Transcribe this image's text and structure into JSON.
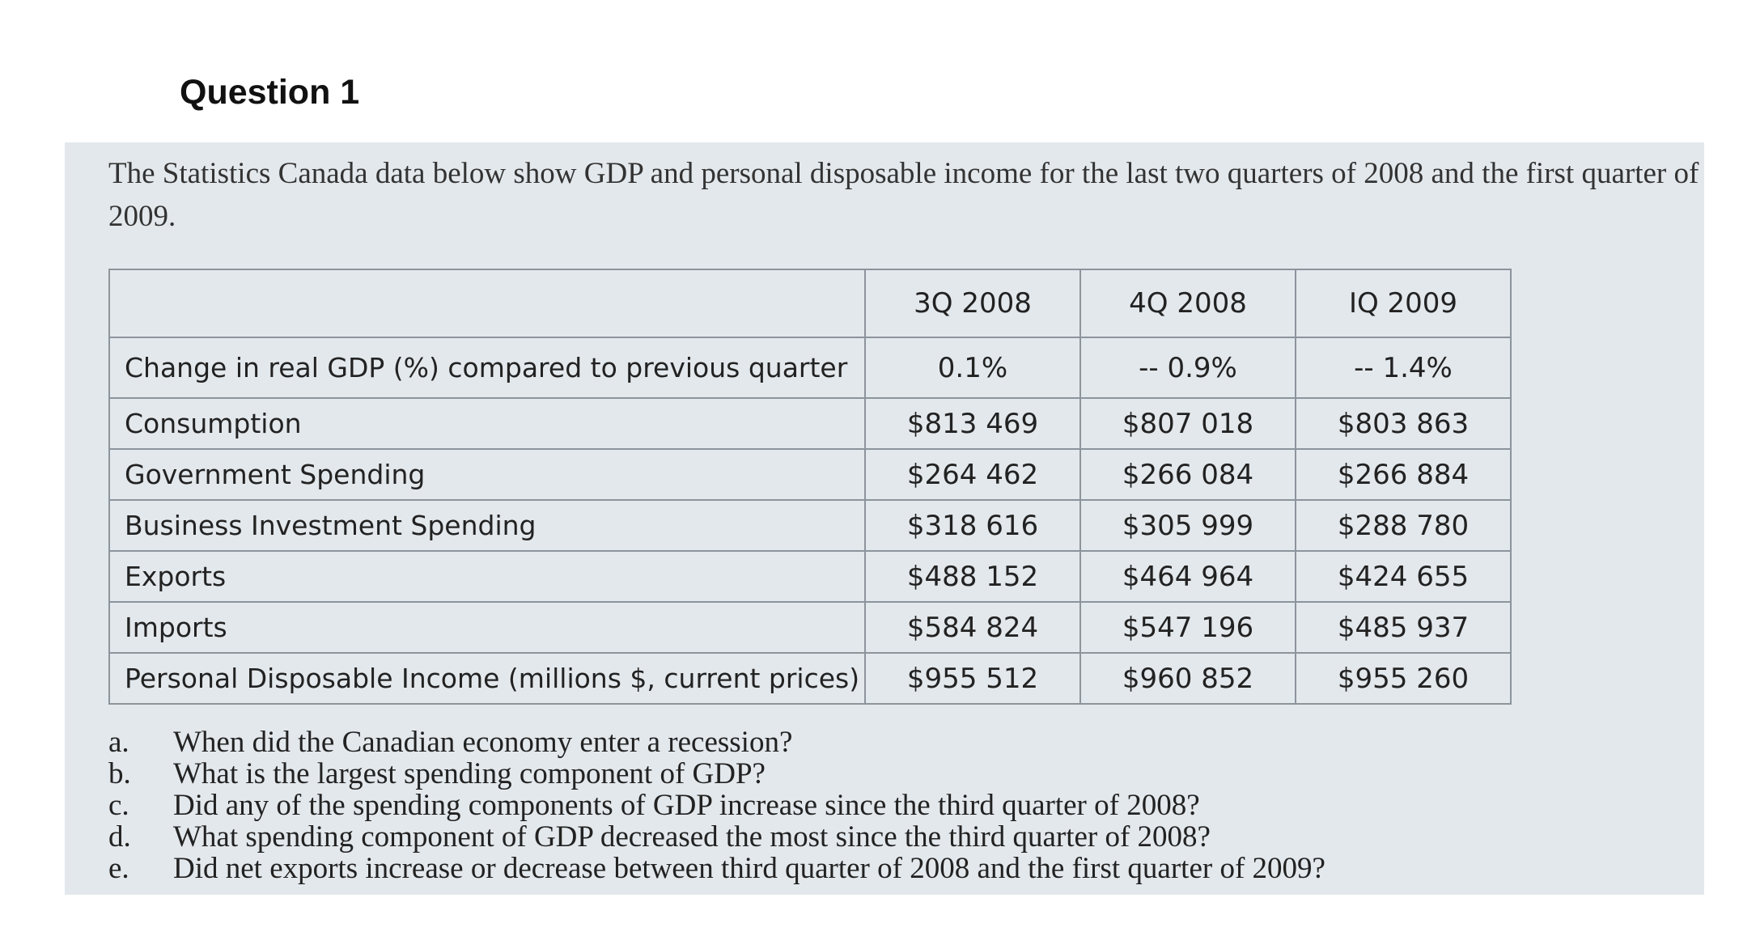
{
  "header": {
    "title": "Question 1"
  },
  "intro": "The Statistics Canada data below show GDP and personal disposable income for the last two quarters of 2008 and the first quarter of 2009.",
  "table": {
    "corner": "",
    "columns": [
      "3Q 2008",
      "4Q 2008",
      "IQ 2009"
    ],
    "rows": [
      {
        "label": "Change in real GDP (%) compared to previous quarter",
        "values": [
          "0.1%",
          "-- 0.9%",
          "-- 1.4%"
        ]
      },
      {
        "label": "Consumption",
        "values": [
          "$813 469",
          "$807 018",
          "$803 863"
        ]
      },
      {
        "label": "Government Spending",
        "values": [
          "$264 462",
          "$266 084",
          "$266 884"
        ]
      },
      {
        "label": "Business Investment Spending",
        "values": [
          "$318 616",
          "$305 999",
          "$288 780"
        ]
      },
      {
        "label": "Exports",
        "values": [
          "$488 152",
          "$464 964",
          "$424 655"
        ]
      },
      {
        "label": "Imports",
        "values": [
          "$584 824",
          "$547 196",
          "$485 937"
        ]
      },
      {
        "label": "Personal Disposable Income (millions $, current prices)",
        "values": [
          "$955 512",
          "$960 852",
          "$955 260"
        ]
      }
    ]
  },
  "questions": [
    {
      "letter": "a.",
      "text": "When did the Canadian economy enter a recession?"
    },
    {
      "letter": "b.",
      "text": "What is the largest spending component of GDP?"
    },
    {
      "letter": "c.",
      "text": "Did any of the spending components of GDP increase since the third quarter of 2008?"
    },
    {
      "letter": "d.",
      "text": "What spending component of GDP decreased the most since the third quarter of 2008?"
    },
    {
      "letter": "e.",
      "text": "Did net exports increase or decrease between third quarter of 2008 and the first quarter of 2009?"
    }
  ]
}
